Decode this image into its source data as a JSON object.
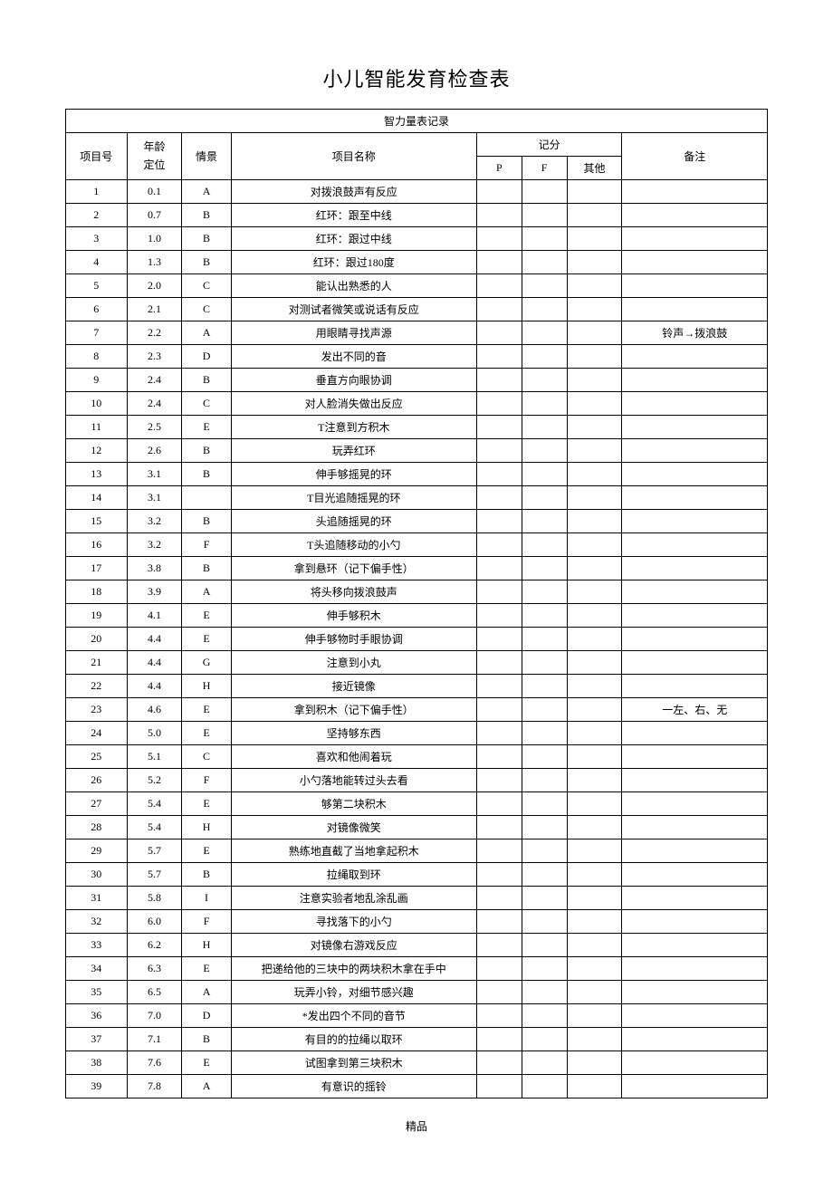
{
  "title": "小儿智能发育检查表",
  "tableHeader": "智力量表记录",
  "columns": {
    "id": "项目号",
    "age": "年龄\n定位",
    "scene": "情景",
    "name": "项目名称",
    "score": "记分",
    "p": "P",
    "f": "F",
    "other": "其他",
    "remark": "备注"
  },
  "rows": [
    {
      "id": "1",
      "age": "0.1",
      "scene": "A",
      "name": "对拨浪鼓声有反应",
      "p": "",
      "f": "",
      "other": "",
      "remark": ""
    },
    {
      "id": "2",
      "age": "0.7",
      "scene": "B",
      "name": "红环：跟至中线",
      "p": "",
      "f": "",
      "other": "",
      "remark": ""
    },
    {
      "id": "3",
      "age": "1.0",
      "scene": "B",
      "name": "红环：跟过中线",
      "p": "",
      "f": "",
      "other": "",
      "remark": ""
    },
    {
      "id": "4",
      "age": "1.3",
      "scene": "B",
      "name": "红环：跟过180度",
      "p": "",
      "f": "",
      "other": "",
      "remark": ""
    },
    {
      "id": "5",
      "age": "2.0",
      "scene": "C",
      "name": "能认出熟悉的人",
      "p": "",
      "f": "",
      "other": "",
      "remark": ""
    },
    {
      "id": "6",
      "age": "2.1",
      "scene": "C",
      "name": "对测试者微笑或说话有反应",
      "p": "",
      "f": "",
      "other": "",
      "remark": ""
    },
    {
      "id": "7",
      "age": "2.2",
      "scene": "A",
      "name": "用眼睛寻找声源",
      "p": "",
      "f": "",
      "other": "",
      "remark": "铃声→拨浪鼓"
    },
    {
      "id": "8",
      "age": "2.3",
      "scene": "D",
      "name": "发出不同的音",
      "p": "",
      "f": "",
      "other": "",
      "remark": ""
    },
    {
      "id": "9",
      "age": "2.4",
      "scene": "B",
      "name": "垂直方向眼协调",
      "p": "",
      "f": "",
      "other": "",
      "remark": ""
    },
    {
      "id": "10",
      "age": "2.4",
      "scene": "C",
      "name": "对人脸消失做出反应",
      "p": "",
      "f": "",
      "other": "",
      "remark": ""
    },
    {
      "id": "11",
      "age": "2.5",
      "scene": "E",
      "name": "T注意到方积木",
      "p": "",
      "f": "",
      "other": "",
      "remark": ""
    },
    {
      "id": "12",
      "age": "2.6",
      "scene": "B",
      "name": "玩弄红环",
      "p": "",
      "f": "",
      "other": "",
      "remark": ""
    },
    {
      "id": "13",
      "age": "3.1",
      "scene": "B",
      "name": "伸手够摇晃的环",
      "p": "",
      "f": "",
      "other": "",
      "remark": ""
    },
    {
      "id": "14",
      "age": "3.1",
      "scene": "",
      "name": "T目光追随摇晃的环",
      "p": "",
      "f": "",
      "other": "",
      "remark": ""
    },
    {
      "id": "15",
      "age": "3.2",
      "scene": "B",
      "name": "头追随摇晃的环",
      "p": "",
      "f": "",
      "other": "",
      "remark": ""
    },
    {
      "id": "16",
      "age": "3.2",
      "scene": "F",
      "name": "T头追随移动的小勺",
      "p": "",
      "f": "",
      "other": "",
      "remark": ""
    },
    {
      "id": "17",
      "age": "3.8",
      "scene": "B",
      "name": "拿到悬环（记下偏手性）",
      "p": "",
      "f": "",
      "other": "",
      "remark": ""
    },
    {
      "id": "18",
      "age": "3.9",
      "scene": "A",
      "name": "将头移向拨浪鼓声",
      "p": "",
      "f": "",
      "other": "",
      "remark": ""
    },
    {
      "id": "19",
      "age": "4.1",
      "scene": "E",
      "name": "伸手够积木",
      "p": "",
      "f": "",
      "other": "",
      "remark": ""
    },
    {
      "id": "20",
      "age": "4.4",
      "scene": "E",
      "name": "伸手够物时手眼协调",
      "p": "",
      "f": "",
      "other": "",
      "remark": ""
    },
    {
      "id": "21",
      "age": "4.4",
      "scene": "G",
      "name": "注意到小丸",
      "p": "",
      "f": "",
      "other": "",
      "remark": ""
    },
    {
      "id": "22",
      "age": "4.4",
      "scene": "H",
      "name": "接近镜像",
      "p": "",
      "f": "",
      "other": "",
      "remark": ""
    },
    {
      "id": "23",
      "age": "4.6",
      "scene": "E",
      "name": "拿到积木（记下偏手性）",
      "p": "",
      "f": "",
      "other": "",
      "remark": "一左、右、无"
    },
    {
      "id": "24",
      "age": "5.0",
      "scene": "E",
      "name": "坚持够东西",
      "p": "",
      "f": "",
      "other": "",
      "remark": ""
    },
    {
      "id": "25",
      "age": "5.1",
      "scene": "C",
      "name": "喜欢和他闹着玩",
      "p": "",
      "f": "",
      "other": "",
      "remark": ""
    },
    {
      "id": "26",
      "age": "5.2",
      "scene": "F",
      "name": "小勺落地能转过头去看",
      "p": "",
      "f": "",
      "other": "",
      "remark": ""
    },
    {
      "id": "27",
      "age": "5.4",
      "scene": "E",
      "name": "够第二块积木",
      "p": "",
      "f": "",
      "other": "",
      "remark": ""
    },
    {
      "id": "28",
      "age": "5.4",
      "scene": "H",
      "name": "对镜像微笑",
      "p": "",
      "f": "",
      "other": "",
      "remark": ""
    },
    {
      "id": "29",
      "age": "5.7",
      "scene": "E",
      "name": "熟练地直截了当地拿起积木",
      "p": "",
      "f": "",
      "other": "",
      "remark": ""
    },
    {
      "id": "30",
      "age": "5.7",
      "scene": "B",
      "name": "拉绳取到环",
      "p": "",
      "f": "",
      "other": "",
      "remark": ""
    },
    {
      "id": "31",
      "age": "5.8",
      "scene": "I",
      "name": "注意实验者地乱涂乱画",
      "p": "",
      "f": "",
      "other": "",
      "remark": ""
    },
    {
      "id": "32",
      "age": "6.0",
      "scene": "F",
      "name": "寻找落下的小勺",
      "p": "",
      "f": "",
      "other": "",
      "remark": ""
    },
    {
      "id": "33",
      "age": "6.2",
      "scene": "H",
      "name": "对镜像右游戏反应",
      "p": "",
      "f": "",
      "other": "",
      "remark": ""
    },
    {
      "id": "34",
      "age": "6.3",
      "scene": "E",
      "name": "把递给他的三块中的两块积木拿在手中",
      "p": "",
      "f": "",
      "other": "",
      "remark": ""
    },
    {
      "id": "35",
      "age": "6.5",
      "scene": "A",
      "name": "玩弄小铃，对细节感兴趣",
      "p": "",
      "f": "",
      "other": "",
      "remark": ""
    },
    {
      "id": "36",
      "age": "7.0",
      "scene": "D",
      "name": "*发出四个不同的音节",
      "p": "",
      "f": "",
      "other": "",
      "remark": ""
    },
    {
      "id": "37",
      "age": "7.1",
      "scene": "B",
      "name": "有目的的拉绳以取环",
      "p": "",
      "f": "",
      "other": "",
      "remark": ""
    },
    {
      "id": "38",
      "age": "7.6",
      "scene": "E",
      "name": "试图拿到第三块积木",
      "p": "",
      "f": "",
      "other": "",
      "remark": ""
    },
    {
      "id": "39",
      "age": "7.8",
      "scene": "A",
      "name": "有意识的摇铃",
      "p": "",
      "f": "",
      "other": "",
      "remark": ""
    }
  ],
  "footer": "精品"
}
